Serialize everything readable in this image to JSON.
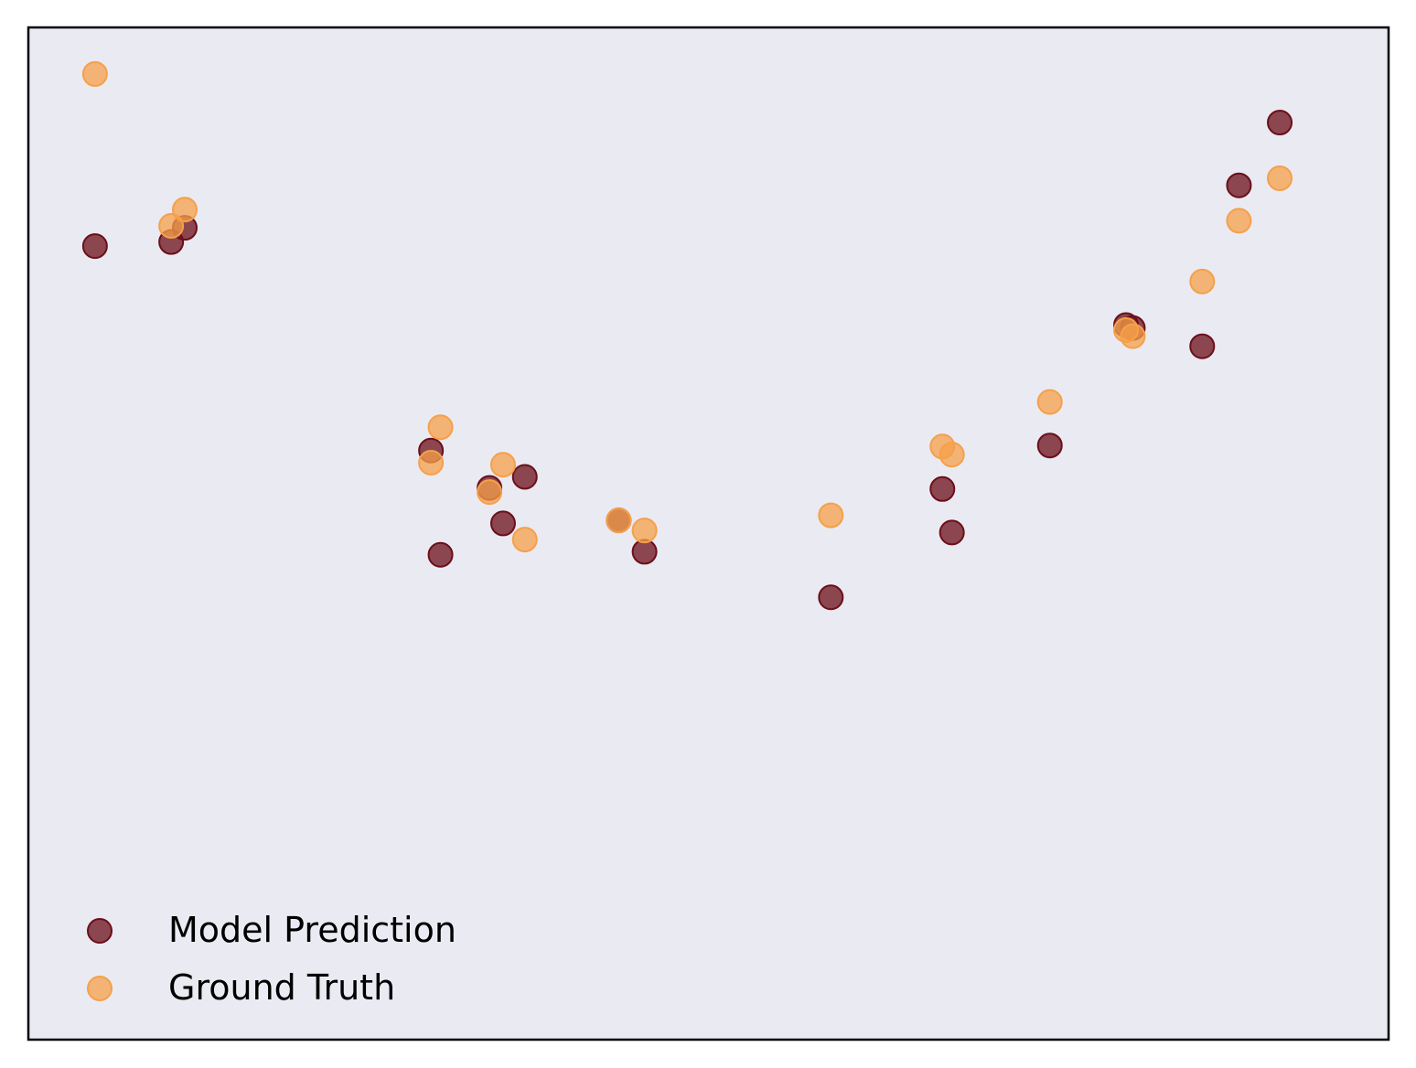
{
  "chart_data": {
    "type": "scatter",
    "title": "",
    "xlabel": "",
    "ylabel": "",
    "xlim": [
      0,
      1
    ],
    "ylim": [
      0,
      1
    ],
    "grid": false,
    "ticks_visible": false,
    "legend_placement": "bottom-left",
    "background_color": "#EAEAF2",
    "series": [
      {
        "name": "Model Prediction",
        "color": "#6B0F1A",
        "points": [
          {
            "x": 0.049,
            "y": 0.784
          },
          {
            "x": 0.105,
            "y": 0.788
          },
          {
            "x": 0.115,
            "y": 0.802
          },
          {
            "x": 0.296,
            "y": 0.582
          },
          {
            "x": 0.303,
            "y": 0.479
          },
          {
            "x": 0.339,
            "y": 0.545
          },
          {
            "x": 0.349,
            "y": 0.51
          },
          {
            "x": 0.365,
            "y": 0.556
          },
          {
            "x": 0.434,
            "y": 0.513
          },
          {
            "x": 0.453,
            "y": 0.482
          },
          {
            "x": 0.59,
            "y": 0.437
          },
          {
            "x": 0.672,
            "y": 0.544
          },
          {
            "x": 0.679,
            "y": 0.501
          },
          {
            "x": 0.751,
            "y": 0.587
          },
          {
            "x": 0.807,
            "y": 0.706
          },
          {
            "x": 0.812,
            "y": 0.703
          },
          {
            "x": 0.863,
            "y": 0.685
          },
          {
            "x": 0.89,
            "y": 0.844
          },
          {
            "x": 0.92,
            "y": 0.906
          }
        ]
      },
      {
        "name": "Ground Truth",
        "color": "#F5A04A",
        "points": [
          {
            "x": 0.049,
            "y": 0.954
          },
          {
            "x": 0.105,
            "y": 0.804
          },
          {
            "x": 0.115,
            "y": 0.82
          },
          {
            "x": 0.296,
            "y": 0.57
          },
          {
            "x": 0.303,
            "y": 0.605
          },
          {
            "x": 0.339,
            "y": 0.541
          },
          {
            "x": 0.349,
            "y": 0.568
          },
          {
            "x": 0.365,
            "y": 0.494
          },
          {
            "x": 0.434,
            "y": 0.513
          },
          {
            "x": 0.453,
            "y": 0.503
          },
          {
            "x": 0.59,
            "y": 0.518
          },
          {
            "x": 0.672,
            "y": 0.586
          },
          {
            "x": 0.679,
            "y": 0.578
          },
          {
            "x": 0.751,
            "y": 0.63
          },
          {
            "x": 0.807,
            "y": 0.701
          },
          {
            "x": 0.812,
            "y": 0.695
          },
          {
            "x": 0.863,
            "y": 0.749
          },
          {
            "x": 0.89,
            "y": 0.809
          },
          {
            "x": 0.92,
            "y": 0.851
          }
        ]
      }
    ],
    "legend": [
      {
        "label": "Model Prediction",
        "color": "#6B0F1A"
      },
      {
        "label": "Ground Truth",
        "color": "#F5A04A"
      }
    ]
  }
}
